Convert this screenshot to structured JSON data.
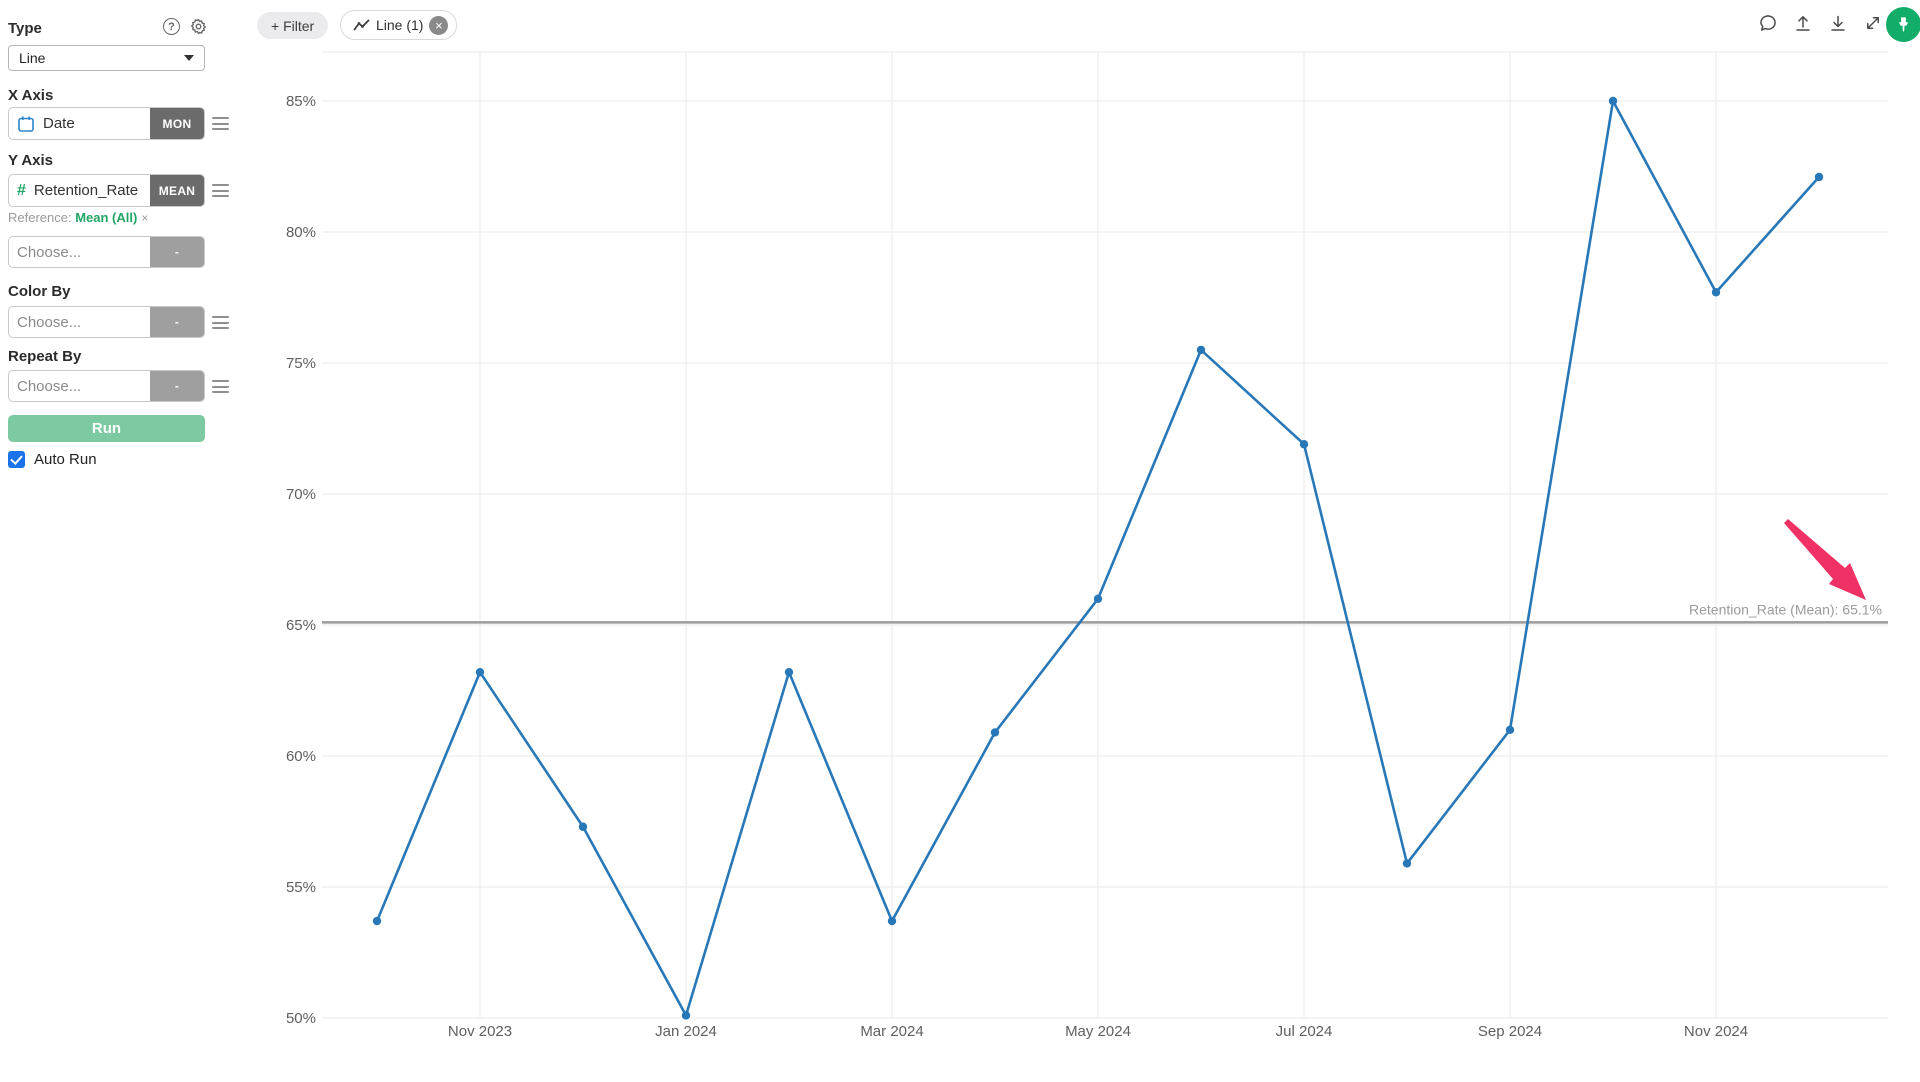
{
  "sidebar": {
    "type": {
      "label": "Type",
      "value": "Line"
    },
    "x_axis": {
      "label": "X Axis",
      "field": "Date",
      "badge": "MON"
    },
    "y_axis": {
      "label": "Y Axis",
      "field": "Retention_Rate",
      "badge": "MEAN",
      "num_glyph": "#",
      "reference_prefix": "Reference:",
      "reference_value": "Mean (All)",
      "reference_remove": "×"
    },
    "y_axis_add": {
      "placeholder": "Choose...",
      "badge": "-"
    },
    "color_by": {
      "label": "Color By",
      "placeholder": "Choose...",
      "badge": "-"
    },
    "repeat_by": {
      "label": "Repeat By",
      "placeholder": "Choose...",
      "badge": "-"
    },
    "run_label": "Run",
    "auto_run_label": "Auto Run",
    "auto_run_checked": true
  },
  "topbar": {
    "filter_label": "+ Filter",
    "tab_label": "Line (1)",
    "tab_close_glyph": "×"
  },
  "chart_data": {
    "type": "line",
    "x": [
      "Oct 2023",
      "Nov 2023",
      "Dec 2023",
      "Jan 2024",
      "Feb 2024",
      "Mar 2024",
      "Apr 2024",
      "May 2024",
      "Jun 2024",
      "Jul 2024",
      "Aug 2024",
      "Sep 2024",
      "Oct 2024",
      "Nov 2024",
      "Dec 2024"
    ],
    "values": [
      53.7,
      63.2,
      57.3,
      50.1,
      63.2,
      53.7,
      60.9,
      66.0,
      75.5,
      71.9,
      55.9,
      61.0,
      85.0,
      77.7,
      82.1
    ],
    "x_ticks": [
      {
        "i": 1,
        "label": "Nov 2023"
      },
      {
        "i": 3,
        "label": "Jan 2024"
      },
      {
        "i": 5,
        "label": "Mar 2024"
      },
      {
        "i": 7,
        "label": "May 2024"
      },
      {
        "i": 9,
        "label": "Jul 2024"
      },
      {
        "i": 11,
        "label": "Sep 2024"
      },
      {
        "i": 13,
        "label": "Nov 2024"
      }
    ],
    "y_ticks": [
      50,
      55,
      60,
      65,
      70,
      75,
      80,
      85
    ],
    "y_tick_suffix": "%",
    "ylim": [
      50,
      87
    ],
    "xlabel": "",
    "ylabel": "",
    "grid": true,
    "legend": "none",
    "reference_line": {
      "value": 65.1,
      "label": "Retention_Rate (Mean): 65.1%"
    },
    "annotation": {
      "type": "arrow",
      "target": "reference-line-label"
    },
    "colors": {
      "line": "#2878b8",
      "grid": "#ededed",
      "axis_text": "#5f5f5f",
      "reference_line": "#9b9b9b",
      "reference_text": "#9b9b9b",
      "arrow": "#ef3166"
    }
  },
  "colors": {
    "run_green": "#7cc9a2",
    "accent_green": "#21a565",
    "avatar_green": "#12ad68",
    "checkbox_blue": "#1a73e8",
    "calendar_blue": "#2e86c9"
  }
}
